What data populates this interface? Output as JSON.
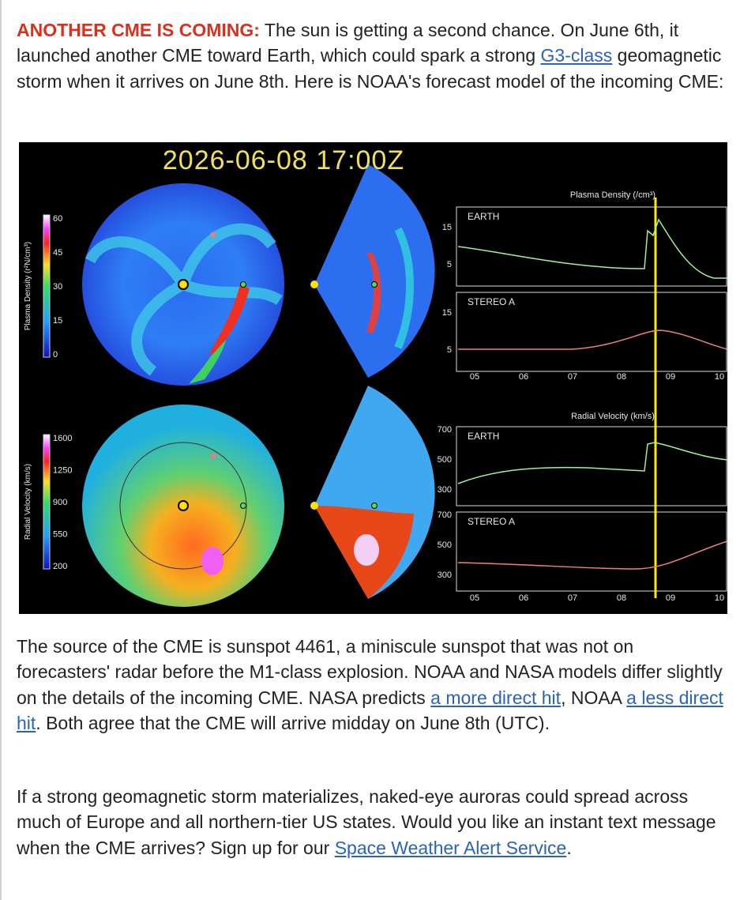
{
  "paragraphs": [
    [
      {
        "lead": "ANOTHER CME IS COMING:"
      },
      {
        "text": " The sun is getting a second chance. On June 6th, it launched another CME toward Earth, which could spark a strong "
      },
      {
        "link": "G3-class"
      },
      {
        "text": " geomagnetic storm when it arrives on June 8th. Here is NOAA's forecast model of the incoming CME:"
      }
    ],
    [
      {
        "text": "The source of the CME is sunspot 4461, a miniscule sunspot that was not on forecasters' radar before the M1-class explosion. NOAA and NASA models differ slightly on the details of the incoming CME. NASA predicts "
      },
      {
        "link": "a more direct hit"
      },
      {
        "text": ", NOAA "
      },
      {
        "link": "a less direct hit"
      },
      {
        "text": ". Both agree that the CME will arrive midday on June 8th (UTC)."
      }
    ],
    [
      {
        "text": "If a strong geomagnetic storm materializes, naked-eye auroras could spread across much of Europe and all northern-tier US states. Would you like an instant text message when the CME arrives? Sign up for our "
      },
      {
        "link": "Space Weather Alert Service"
      },
      {
        "text": "."
      }
    ]
  ],
  "figure": {
    "timestamp": "2026-06-08  17:00Z",
    "colorbars": [
      {
        "label": "Plasma Density (r²N/cm³)",
        "ticks": [
          "60",
          "45",
          "30",
          "15",
          "0"
        ]
      },
      {
        "label": "Radial Velocity (km/s)",
        "ticks": [
          "1600",
          "1250",
          "900",
          "550",
          "200"
        ]
      }
    ],
    "plots": [
      {
        "title": "Plasma Density (/cm³)",
        "panels": [
          {
            "name": "EARTH",
            "yticks": [
              "15",
              "5"
            ]
          },
          {
            "name": "STEREO A",
            "yticks": [
              "15",
              "5"
            ]
          }
        ],
        "xticks": [
          "05",
          "06",
          "07",
          "08",
          "09",
          "10"
        ]
      },
      {
        "title": "Radial Velocity (km/s)",
        "panels": [
          {
            "name": "EARTH",
            "yticks": [
              "700",
              "500",
              "300"
            ]
          },
          {
            "name": "STEREO A",
            "yticks": [
              "700",
              "500",
              "300"
            ]
          }
        ],
        "xticks": [
          "05",
          "06",
          "07",
          "08",
          "09",
          "10"
        ]
      }
    ]
  }
}
